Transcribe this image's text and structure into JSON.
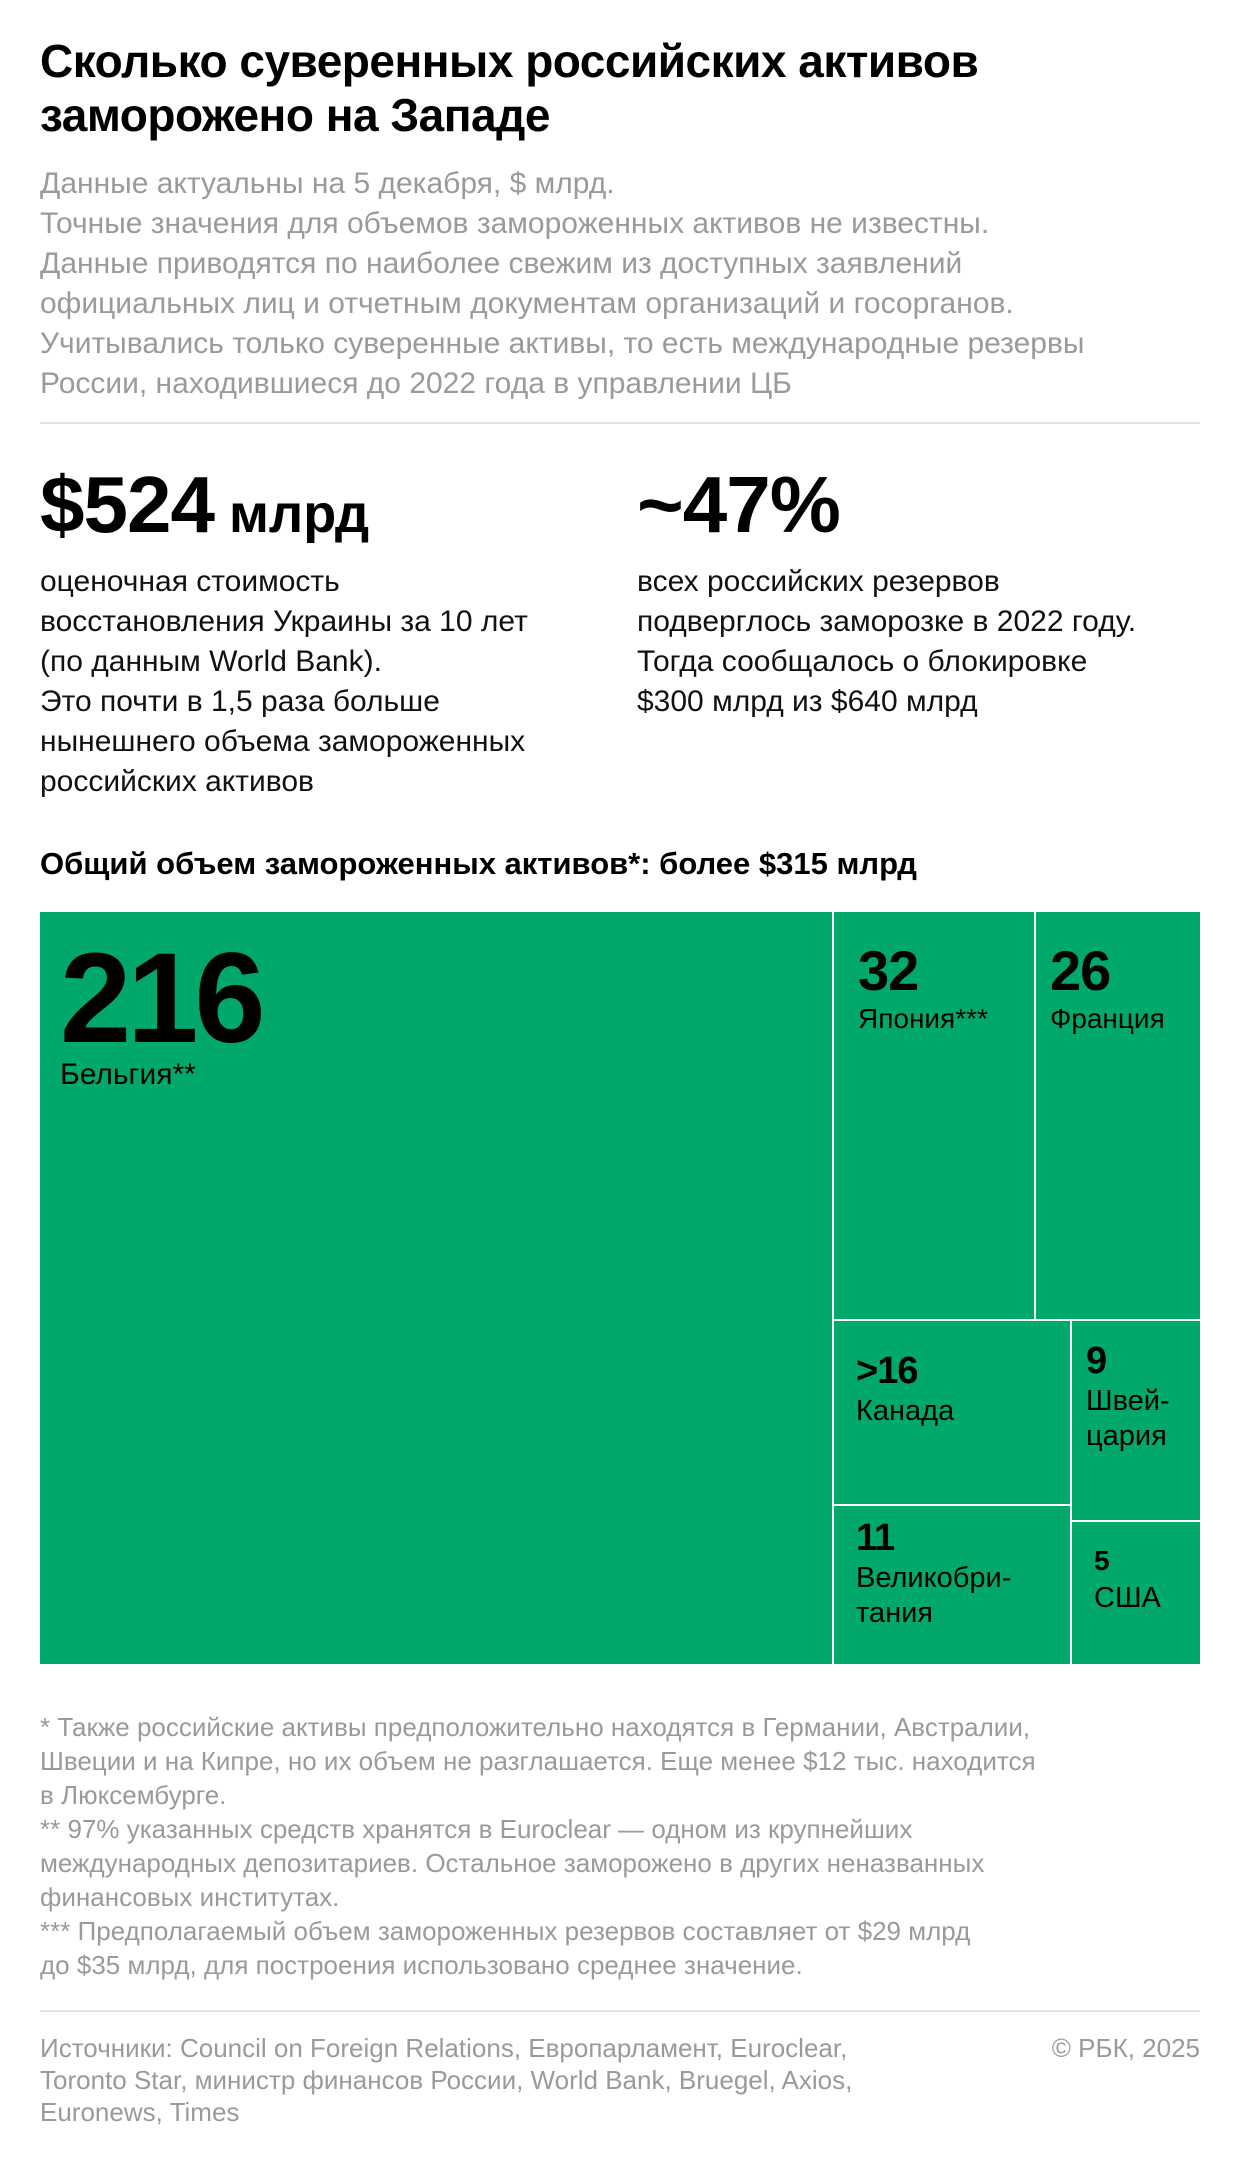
{
  "header": {
    "title_lines": [
      "Сколько суверенных российских активов",
      "заморожено на Западе"
    ],
    "subtitle_lines": [
      "Данные актуальны на 5 декабря, $ млрд.",
      "Точные значения для объемов замороженных активов не известны.",
      "Данные приводятся по наиболее свежим из доступных заявлений",
      "официальных лиц и отчетным документам организаций и госорганов.",
      "Учитывались только суверенные активы, то есть международные резервы",
      "России, находившиеся до 2022 года в управлении ЦБ"
    ]
  },
  "stats": [
    {
      "value": "$524",
      "unit": " млрд",
      "lines": [
        "оценочная стоимость",
        "восстановления Украины за 10 лет",
        "(по данным World Bank).",
        "Это почти в 1,5 раза больше",
        "нынешнего объема замороженных",
        "российских активов"
      ]
    },
    {
      "value": "~47%",
      "unit": "",
      "lines": [
        "всех российских резервов",
        "подверглось заморозке в 2022 году.",
        "Тогда сообщалось о блокировке",
        "$300 млрд из $640 млрд"
      ]
    }
  ],
  "chart_data": {
    "type": "treemap",
    "title": "Общий объем замороженных активов*: более $315 млрд",
    "color": "#00a86b",
    "border_color": "#ffffff",
    "label_color": "#000000",
    "items": [
      {
        "name": "Бельгия**",
        "value": 216,
        "label": "216",
        "name_lines": [
          "Бельгия**"
        ]
      },
      {
        "name": "Япония***",
        "value": 32,
        "label": "32",
        "name_lines": [
          "Япония***"
        ]
      },
      {
        "name": "Франция",
        "value": 26,
        "label": "26",
        "name_lines": [
          "Франция"
        ]
      },
      {
        "name": "Канада",
        "value": 16,
        "label": ">16",
        "name_lines": [
          "Канада"
        ]
      },
      {
        "name": "Швейцария",
        "value": 9,
        "label": "9",
        "name_lines": [
          "Швей-",
          "цария"
        ]
      },
      {
        "name": "Великобритания",
        "value": 11,
        "label": "11",
        "name_lines": [
          "Великобри-",
          "тания"
        ]
      },
      {
        "name": "США",
        "value": 5,
        "label": "5",
        "name_lines": [
          "США"
        ]
      }
    ]
  },
  "footnotes": [
    "* Также российские активы предположительно находятся в Германии, Австралии,",
    "Швеции и на Кипре, но их объем не разглашается. Еще менее $12 тыс. находится",
    "в Люксембурге.",
    "** 97% указанных средств хранятся в Euroclear — одном из крупнейших",
    "международных депозитариев. Остальное заморожено в других неназванных",
    "финансовых институтах.",
    "*** Предполагаемый объем замороженных резервов составляет от $29 млрд",
    "до $35 млрд, для построения использовано среднее значение."
  ],
  "sources_lines": [
    "Источники: Council on Foreign Relations, Европарламент, Euroclear,",
    "Toronto Star, министр финансов России, World Bank, Bruegel, Axios,",
    "Euronews, Times"
  ],
  "copyright": "© РБК, 2025"
}
